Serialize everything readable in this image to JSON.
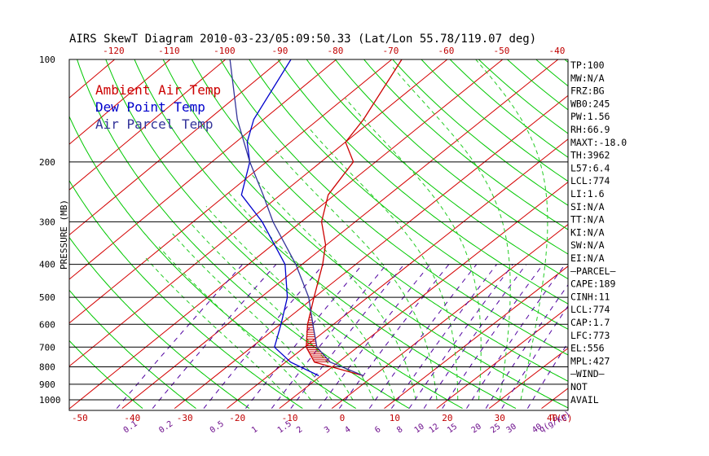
{
  "chart_data": {
    "type": "line",
    "title": "AIRS SkewT Diagram 2010-03-23/05:09:50.33 (Lat/Lon 55.78/119.07 deg)",
    "ylabel": "PRESSURE (MB)",
    "xlabel_bottom": "T(C)",
    "mixing_ratio_unit": "q(g/kg)",
    "pressure_range": [
      1000,
      100
    ],
    "bottom_temp_range": [
      -52,
      43
    ],
    "top_temp_range": [
      -128,
      -38
    ],
    "pressure_ticks": [
      100,
      200,
      300,
      400,
      500,
      600,
      700,
      800,
      900,
      1000
    ],
    "bottom_temp_ticks": [
      -50,
      -40,
      -30,
      -20,
      -10,
      0,
      10,
      20,
      30,
      40
    ],
    "top_temp_ticks": [
      -120,
      -110,
      -100,
      -90,
      -80,
      -70,
      -60,
      -50,
      -40
    ],
    "mixing_ratio_labels": [
      "0.1",
      "0.2",
      "0.5",
      "1",
      "1.5",
      "2",
      "3",
      "4",
      "6",
      "8",
      "10",
      "12",
      "15",
      "20",
      "25",
      "30",
      "40"
    ],
    "mixing_ratio_values": [
      0.1,
      0.2,
      0.5,
      1,
      1.5,
      2,
      3,
      4,
      6,
      8,
      10,
      12,
      15,
      20,
      25,
      30,
      40
    ],
    "series": [
      {
        "name": "Ambient Air Temp",
        "color": "#cc0000",
        "points": [
          [
            850,
            -1.5
          ],
          [
            775,
            -14
          ],
          [
            700,
            -19
          ],
          [
            600,
            -24
          ],
          [
            500,
            -29
          ],
          [
            400,
            -35
          ],
          [
            350,
            -39
          ],
          [
            300,
            -45
          ],
          [
            250,
            -50
          ],
          [
            200,
            -53
          ],
          [
            175,
            -59
          ],
          [
            150,
            -61
          ],
          [
            100,
            -68
          ]
        ]
      },
      {
        "name": "Dew Point Temp",
        "color": "#0000cc",
        "points": [
          [
            850,
            -10
          ],
          [
            775,
            -18.5
          ],
          [
            700,
            -25
          ],
          [
            600,
            -29
          ],
          [
            500,
            -34
          ],
          [
            400,
            -42
          ],
          [
            300,
            -56
          ],
          [
            250,
            -66
          ],
          [
            200,
            -72
          ],
          [
            175,
            -77
          ],
          [
            150,
            -81
          ],
          [
            100,
            -88
          ]
        ]
      },
      {
        "name": "Air Parcel Temp",
        "color": "#333399",
        "points": [
          [
            850,
            -1.5
          ],
          [
            775,
            -11
          ],
          [
            700,
            -17
          ],
          [
            600,
            -23
          ],
          [
            500,
            -30
          ],
          [
            400,
            -40
          ],
          [
            300,
            -54
          ],
          [
            250,
            -62
          ],
          [
            200,
            -72
          ],
          [
            150,
            -84
          ],
          [
            100,
            -99
          ]
        ]
      }
    ],
    "legend": {
      "placement": "top-left",
      "entries": [
        "Ambient Air Temp",
        "Dew Point Temp",
        "Air Parcel Temp"
      ]
    },
    "cape_shading": {
      "color": "#cc0000",
      "p_bottom": 773,
      "p_top": 556
    },
    "indices": [
      "TP:100",
      "MW:N/A",
      "FRZ:BG",
      "WB0:245",
      "PW:1.56",
      "RH:66.9",
      "MAXT:-18.0",
      "TH:3962",
      "L57:6.4",
      "LCL:774",
      "LI:1.6",
      "SI:N/A",
      "TT:N/A",
      "KI:N/A",
      "SW:N/A",
      "EI:N/A",
      "—PARCEL—",
      "CAPE:189",
      "CINH:11",
      "LCL:774",
      "CAP:1.7",
      "LFC:773",
      "EL:556",
      "MPL:427",
      "—WIND—",
      "NOT",
      "AVAIL"
    ],
    "colors": {
      "isotherm": "#d40000",
      "dry_adiabat": "#00c800",
      "moist_adiabat": "#22cc22",
      "mixing_ratio": "#5000a0",
      "isobar": "#000000",
      "axis_text": "#c00000",
      "mixing_text": "#6a0a8a",
      "index_text": "#000000"
    }
  }
}
